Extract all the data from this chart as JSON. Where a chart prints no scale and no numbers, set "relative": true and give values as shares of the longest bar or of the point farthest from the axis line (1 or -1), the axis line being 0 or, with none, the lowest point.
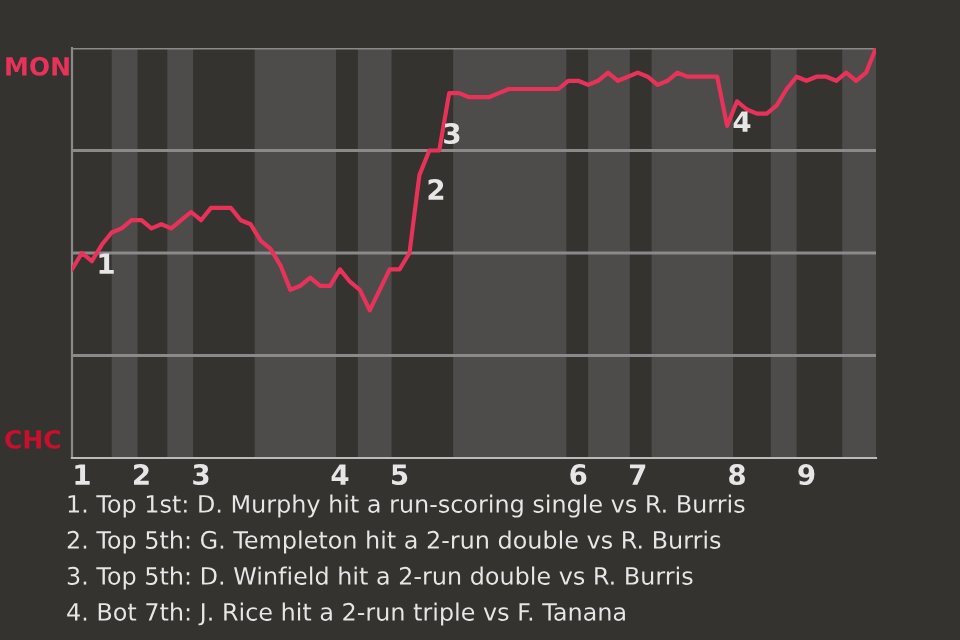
{
  "chart_data": {
    "type": "line",
    "relative": true,
    "categories": [
      null,
      "1",
      null,
      null,
      null,
      null,
      null,
      "2",
      null,
      null,
      null,
      null,
      null,
      "3",
      null,
      null,
      null,
      null,
      null,
      null,
      null,
      null,
      null,
      null,
      null,
      null,
      null,
      "4",
      null,
      null,
      null,
      null,
      null,
      "5",
      null,
      null,
      null,
      null,
      null,
      null,
      null,
      null,
      null,
      null,
      null,
      null,
      null,
      null,
      null,
      null,
      null,
      "6",
      null,
      null,
      null,
      null,
      null,
      "7",
      null,
      null,
      null,
      null,
      null,
      null,
      null,
      null,
      null,
      "8",
      null,
      null,
      null,
      null,
      null,
      null,
      "9",
      null,
      null,
      null,
      null,
      null,
      null,
      null
    ],
    "series": [
      {
        "color": "#e8325a",
        "values": [
          0.46,
          0.5,
          0.48,
          0.52,
          0.55,
          0.56,
          0.58,
          0.58,
          0.56,
          0.57,
          0.56,
          0.58,
          0.6,
          0.58,
          0.61,
          0.61,
          0.61,
          0.58,
          0.57,
          0.53,
          0.51,
          0.47,
          0.41,
          0.42,
          0.44,
          0.42,
          0.42,
          0.46,
          0.43,
          0.41,
          0.36,
          0.41,
          0.46,
          0.46,
          0.5,
          0.69,
          0.75,
          0.75,
          0.89,
          0.89,
          0.88,
          0.88,
          0.88,
          0.89,
          0.9,
          0.9,
          0.9,
          0.9,
          0.9,
          0.9,
          0.92,
          0.92,
          0.91,
          0.92,
          0.94,
          0.92,
          0.93,
          0.94,
          0.93,
          0.91,
          0.92,
          0.94,
          0.93,
          0.93,
          0.93,
          0.93,
          0.81,
          0.87,
          0.85,
          0.84,
          0.84,
          0.86,
          0.9,
          0.93,
          0.92,
          0.93,
          0.93,
          0.92,
          0.94,
          0.92,
          0.94,
          1.0
        ]
      }
    ],
    "ref_lines": [
      {
        "axis": "y",
        "value": 0.25,
        "color": "#8a8a8a"
      },
      {
        "axis": "y",
        "value": 0.5,
        "color": "#8a8a8a"
      },
      {
        "axis": "y",
        "value": 0.75,
        "color": "#8a8a8a"
      },
      {
        "axis": "y",
        "value": 1,
        "color": "#8a8a8a"
      }
    ],
    "annotations": [
      "MON",
      "CHC",
      "1",
      "2",
      "3",
      "4",
      "1. Top 1st: D. Murphy hit a run-scoring single vs R. Burris",
      "2. Top 5th: G. Templeton hit a 2-run double vs R. Burris",
      "3. Top 5th: D. Winfield hit a 2-run double vs R. Burris",
      "4. Bot 7th: J. Rice hit a 2-run triple vs F. Tanana"
    ]
  }
}
